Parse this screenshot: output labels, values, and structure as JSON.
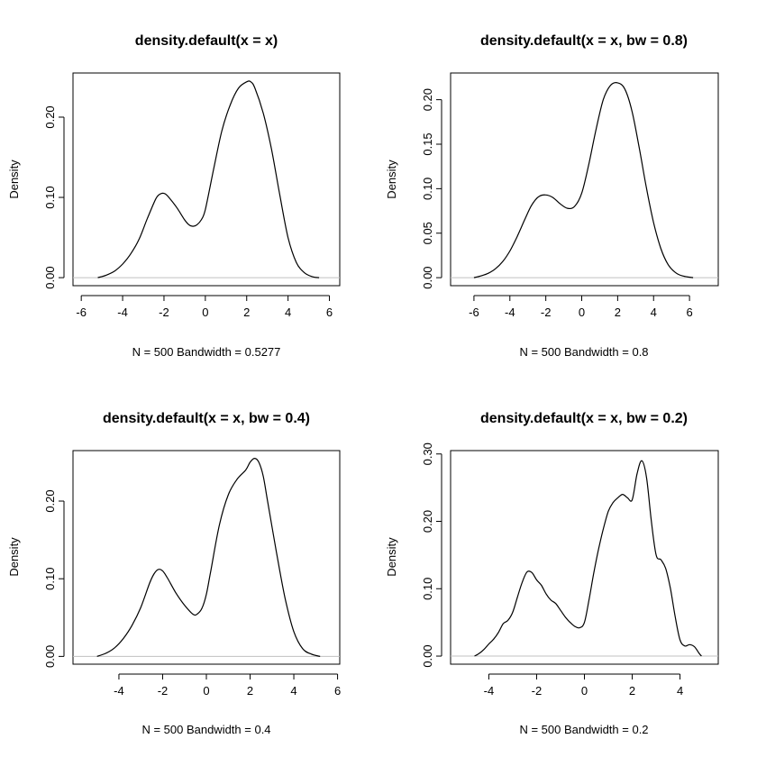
{
  "chart_data": [
    {
      "type": "line",
      "title": "density.default(x = x)",
      "xlabel": "N = 500   Bandwidth = 0.5277",
      "ylabel": "Density",
      "xlim": [
        -6.4,
        6.5
      ],
      "ylim": [
        -0.01,
        0.255
      ],
      "xticks": [
        -6,
        -4,
        -2,
        0,
        2,
        4,
        6
      ],
      "xtick_labels": [
        "-6",
        "-4",
        "-2",
        "0",
        "2",
        "4",
        "6"
      ],
      "yticks": [
        0.0,
        0.1,
        0.2
      ],
      "ytick_labels": [
        "0.00",
        "0.10",
        "0.20"
      ],
      "grid": false,
      "series": [
        {
          "x": [
            -5.2,
            -4.8,
            -4.4,
            -4.0,
            -3.6,
            -3.2,
            -2.8,
            -2.4,
            -2.2,
            -2.0,
            -1.8,
            -1.4,
            -1.0,
            -0.8,
            -0.6,
            -0.4,
            -0.2,
            0.0,
            0.4,
            0.8,
            1.2,
            1.6,
            2.0,
            2.2,
            2.4,
            2.8,
            3.2,
            3.6,
            4.0,
            4.4,
            4.8,
            5.2,
            5.5
          ],
          "y": [
            0.0,
            0.003,
            0.008,
            0.017,
            0.03,
            0.048,
            0.074,
            0.098,
            0.104,
            0.105,
            0.101,
            0.088,
            0.072,
            0.066,
            0.064,
            0.066,
            0.072,
            0.085,
            0.135,
            0.183,
            0.215,
            0.236,
            0.244,
            0.244,
            0.236,
            0.205,
            0.16,
            0.103,
            0.05,
            0.019,
            0.006,
            0.001,
            0.0
          ]
        }
      ]
    },
    {
      "type": "line",
      "title": "density.default(x = x, bw = 0.8)",
      "xlabel": "N = 500   Bandwidth = 0.8",
      "ylabel": "Density",
      "xlim": [
        -7.3,
        7.6
      ],
      "ylim": [
        -0.009,
        0.23
      ],
      "xticks": [
        -6,
        -4,
        -2,
        0,
        2,
        4,
        6
      ],
      "xtick_labels": [
        "-6",
        "-4",
        "-2",
        "0",
        "2",
        "4",
        "6"
      ],
      "yticks": [
        0.0,
        0.05,
        0.1,
        0.15,
        0.2
      ],
      "ytick_labels": [
        "0.00",
        "0.05",
        "0.10",
        "0.15",
        "0.20"
      ],
      "grid": false,
      "series": [
        {
          "x": [
            -6.0,
            -5.6,
            -5.2,
            -4.8,
            -4.4,
            -4.0,
            -3.6,
            -3.2,
            -2.8,
            -2.4,
            -2.0,
            -1.6,
            -1.2,
            -0.8,
            -0.4,
            0.0,
            0.4,
            0.8,
            1.2,
            1.6,
            2.0,
            2.4,
            2.8,
            3.2,
            3.6,
            4.0,
            4.4,
            4.8,
            5.2,
            5.6,
            6.2
          ],
          "y": [
            0.0,
            0.002,
            0.005,
            0.01,
            0.018,
            0.03,
            0.046,
            0.064,
            0.081,
            0.091,
            0.093,
            0.09,
            0.083,
            0.078,
            0.08,
            0.095,
            0.128,
            0.167,
            0.2,
            0.216,
            0.219,
            0.212,
            0.187,
            0.146,
            0.101,
            0.062,
            0.033,
            0.015,
            0.006,
            0.002,
            0.0
          ]
        }
      ]
    },
    {
      "type": "line",
      "title": "density.default(x = x, bw = 0.4)",
      "xlabel": "N = 500   Bandwidth = 0.4",
      "ylabel": "Density",
      "xlim": [
        -6.1,
        6.1
      ],
      "ylim": [
        -0.01,
        0.265
      ],
      "xticks": [
        -4,
        -2,
        0,
        2,
        4,
        6
      ],
      "xtick_labels": [
        "-4",
        "-2",
        "0",
        "2",
        "4",
        "6"
      ],
      "yticks": [
        0.0,
        0.1,
        0.2
      ],
      "ytick_labels": [
        "0.00",
        "0.10",
        "0.20"
      ],
      "grid": false,
      "series": [
        {
          "x": [
            -5.0,
            -4.6,
            -4.2,
            -3.8,
            -3.4,
            -3.0,
            -2.6,
            -2.4,
            -2.2,
            -2.0,
            -1.8,
            -1.4,
            -1.0,
            -0.6,
            -0.4,
            -0.2,
            0.0,
            0.2,
            0.6,
            1.0,
            1.4,
            1.8,
            2.0,
            2.2,
            2.4,
            2.6,
            2.8,
            3.2,
            3.6,
            4.0,
            4.4,
            4.8,
            5.2
          ],
          "y": [
            0.0,
            0.004,
            0.011,
            0.023,
            0.04,
            0.063,
            0.094,
            0.106,
            0.112,
            0.11,
            0.102,
            0.082,
            0.066,
            0.054,
            0.055,
            0.062,
            0.08,
            0.11,
            0.17,
            0.208,
            0.228,
            0.24,
            0.25,
            0.255,
            0.25,
            0.232,
            0.2,
            0.135,
            0.075,
            0.032,
            0.01,
            0.003,
            0.0
          ]
        }
      ]
    },
    {
      "type": "line",
      "title": "density.default(x = x, bw = 0.2)",
      "xlabel": "N = 500   Bandwidth = 0.2",
      "ylabel": "Density",
      "xlim": [
        -5.6,
        5.6
      ],
      "ylim": [
        -0.012,
        0.305
      ],
      "xticks": [
        -4,
        -2,
        0,
        2,
        4
      ],
      "xtick_labels": [
        "-4",
        "-2",
        "0",
        "2",
        "4"
      ],
      "yticks": [
        0.0,
        0.1,
        0.2,
        0.3
      ],
      "ytick_labels": [
        "0.00",
        "0.10",
        "0.20",
        "0.30"
      ],
      "grid": false,
      "series": [
        {
          "x": [
            -4.6,
            -4.4,
            -4.2,
            -4.0,
            -3.8,
            -3.6,
            -3.4,
            -3.2,
            -3.0,
            -2.8,
            -2.6,
            -2.4,
            -2.2,
            -2.0,
            -1.8,
            -1.6,
            -1.4,
            -1.2,
            -1.0,
            -0.8,
            -0.6,
            -0.4,
            -0.2,
            0.0,
            0.2,
            0.4,
            0.6,
            0.8,
            1.0,
            1.2,
            1.4,
            1.6,
            1.8,
            2.0,
            2.2,
            2.4,
            2.6,
            2.8,
            3.0,
            3.2,
            3.4,
            3.6,
            3.8,
            4.0,
            4.2,
            4.4,
            4.6,
            4.8,
            4.9
          ],
          "y": [
            0.0,
            0.004,
            0.01,
            0.018,
            0.025,
            0.035,
            0.048,
            0.053,
            0.065,
            0.088,
            0.11,
            0.125,
            0.124,
            0.113,
            0.105,
            0.092,
            0.083,
            0.078,
            0.068,
            0.058,
            0.05,
            0.044,
            0.042,
            0.05,
            0.085,
            0.125,
            0.16,
            0.19,
            0.215,
            0.228,
            0.235,
            0.24,
            0.235,
            0.232,
            0.27,
            0.29,
            0.265,
            0.2,
            0.15,
            0.143,
            0.13,
            0.1,
            0.058,
            0.024,
            0.015,
            0.017,
            0.014,
            0.004,
            0.0
          ]
        }
      ]
    }
  ]
}
